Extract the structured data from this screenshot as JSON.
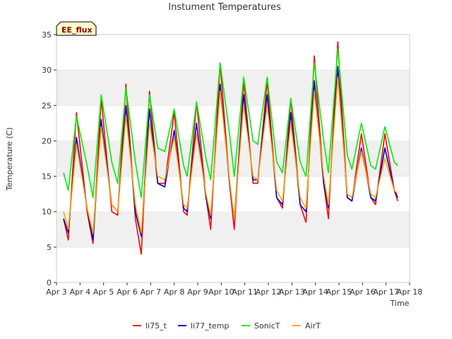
{
  "chart_data": {
    "type": "line",
    "title": "Instument Temperatures",
    "xlabel": "Time",
    "ylabel": "Temperature (C)",
    "badge": "EE_flux",
    "xlim": [
      3,
      18
    ],
    "ylim": [
      0,
      35
    ],
    "x_ticks": [
      "Apr 3",
      "Apr 4",
      "Apr 5",
      "Apr 6",
      "Apr 7",
      "Apr 8",
      "Apr 9",
      "Apr 10",
      "Apr 11",
      "Apr 12",
      "Apr 13",
      "Apr 14",
      "Apr 15",
      "Apr 16",
      "Apr 17",
      "Apr 18"
    ],
    "y_ticks": [
      0,
      5,
      10,
      15,
      20,
      25,
      30,
      35
    ],
    "grid": "horizontal alternating bands",
    "legend_position": "bottom",
    "series": [
      {
        "name": "li75_t",
        "color": "#ff0000",
        "x": [
          3.3,
          3.5,
          3.85,
          4.3,
          4.55,
          4.9,
          5.35,
          5.6,
          5.95,
          6.35,
          6.6,
          6.95,
          7.3,
          7.6,
          8.0,
          8.4,
          8.55,
          8.95,
          9.35,
          9.55,
          9.95,
          10.35,
          10.55,
          10.95,
          11.35,
          11.55,
          11.95,
          12.35,
          12.6,
          12.95,
          13.35,
          13.6,
          13.95,
          14.35,
          14.55,
          14.95,
          15.35,
          15.55,
          15.95,
          16.35,
          16.55,
          16.95,
          17.35,
          17.5
        ],
        "y": [
          9,
          6,
          24,
          10,
          5.5,
          26,
          10,
          9.5,
          28,
          9,
          4,
          27,
          14,
          14,
          24,
          10,
          9.5,
          25.5,
          12,
          7.5,
          31,
          14,
          7.5,
          28.5,
          14,
          14,
          28.5,
          12,
          10.5,
          26,
          11,
          8.5,
          32,
          14,
          9,
          34,
          12,
          11.5,
          21,
          12,
          11,
          21,
          13,
          11.5
        ]
      },
      {
        "name": "li77_temp",
        "color": "#0000cc",
        "x": [
          3.3,
          3.5,
          3.85,
          4.3,
          4.55,
          4.9,
          5.35,
          5.6,
          5.95,
          6.35,
          6.6,
          6.95,
          7.3,
          7.6,
          8.0,
          8.4,
          8.55,
          8.95,
          9.35,
          9.55,
          9.95,
          10.35,
          10.55,
          10.95,
          11.35,
          11.55,
          11.95,
          12.35,
          12.6,
          12.95,
          13.35,
          13.6,
          13.95,
          14.35,
          14.55,
          14.95,
          15.35,
          15.55,
          15.95,
          16.35,
          16.55,
          16.95,
          17.35,
          17.5
        ],
        "y": [
          9,
          7,
          20.5,
          10.5,
          6,
          23,
          11,
          10,
          25,
          10,
          6.5,
          24.5,
          14,
          13.5,
          21.5,
          10.5,
          10,
          22.5,
          12,
          9,
          28,
          14,
          9,
          26.5,
          14.5,
          14.5,
          26.5,
          12,
          11,
          24,
          11,
          10,
          28.5,
          14,
          10.5,
          30.5,
          12,
          11.5,
          19,
          12,
          11.5,
          19,
          13,
          12
        ]
      },
      {
        "name": "SonicT",
        "color": "#00ee00",
        "x": [
          3.3,
          3.5,
          3.85,
          4.3,
          4.55,
          4.9,
          5.35,
          5.6,
          5.95,
          6.35,
          6.6,
          6.95,
          7.3,
          7.6,
          8.0,
          8.4,
          8.55,
          8.95,
          9.35,
          9.55,
          9.95,
          10.35,
          10.55,
          10.95,
          11.35,
          11.55,
          11.95,
          12.35,
          12.6,
          12.95,
          13.35,
          13.6,
          13.95,
          14.35,
          14.55,
          14.95,
          15.35,
          15.55,
          15.95,
          16.35,
          16.55,
          16.95,
          17.35,
          17.5
        ],
        "y": [
          15.5,
          13,
          23.5,
          16.5,
          12,
          26.5,
          17,
          14,
          27.5,
          17,
          12,
          26.5,
          19,
          18.5,
          24.5,
          16.5,
          15,
          25.5,
          17.5,
          14.5,
          31,
          21,
          15,
          29,
          20,
          19.5,
          29,
          17,
          15.5,
          26,
          17,
          15,
          31,
          20,
          15.5,
          33,
          18,
          16,
          22.5,
          16.5,
          16,
          22,
          17,
          16.5
        ]
      },
      {
        "name": "AirT",
        "color": "#ffa500",
        "x": [
          3.3,
          3.5,
          3.85,
          4.3,
          4.55,
          4.9,
          5.35,
          5.6,
          5.95,
          6.35,
          6.6,
          6.95,
          7.3,
          7.6,
          8.0,
          8.4,
          8.55,
          8.95,
          9.35,
          9.55,
          9.95,
          10.35,
          10.55,
          10.95,
          11.35,
          11.55,
          11.95,
          12.35,
          12.6,
          12.95,
          13.35,
          13.6,
          13.95,
          14.35,
          14.55,
          14.95,
          15.35,
          15.55,
          15.95,
          16.35,
          16.55,
          16.95,
          17.35,
          17.5
        ],
        "y": [
          10,
          7.5,
          19.5,
          10.5,
          7,
          22,
          11,
          10,
          23.5,
          11,
          7,
          22.5,
          15,
          14.5,
          20.5,
          11,
          10.5,
          21,
          12.5,
          9.5,
          27,
          14.5,
          9,
          25,
          15,
          14.5,
          25,
          13,
          11.5,
          22.5,
          12,
          10.5,
          27,
          15,
          11,
          29,
          12.5,
          12,
          18.5,
          12.5,
          12,
          17.5,
          13,
          12.5
        ]
      }
    ]
  }
}
